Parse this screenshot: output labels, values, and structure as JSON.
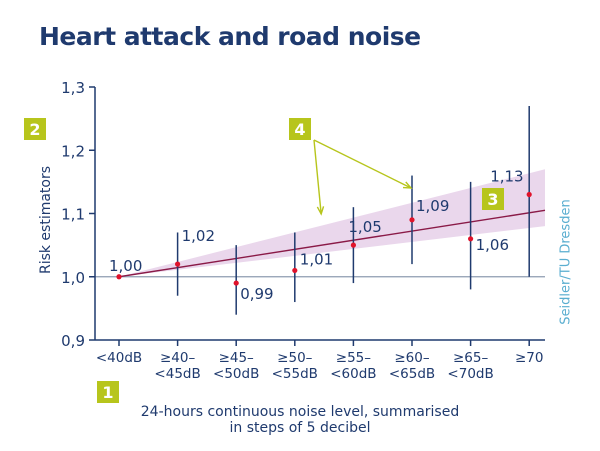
{
  "chart_data": {
    "type": "scatter",
    "title": "Heart attack and road noise",
    "xlabel_line1": "24-hours continuous noise level, summarised",
    "xlabel_line2": "in steps of 5 decibel",
    "ylabel": "Risk estimators",
    "credit": "Seidler/TU Dresden",
    "categories": [
      [
        "<40dB"
      ],
      [
        "≥40–",
        "<45dB"
      ],
      [
        "≥45–",
        "<50dB"
      ],
      [
        "≥50–",
        "<55dB"
      ],
      [
        "≥55–",
        "<60dB"
      ],
      [
        "≥60–",
        "<65dB"
      ],
      [
        "≥65–",
        "<70dB"
      ],
      [
        "≥70"
      ]
    ],
    "values": [
      1.0,
      1.02,
      0.99,
      1.01,
      1.05,
      1.09,
      1.06,
      1.13
    ],
    "value_labels": [
      "1,00",
      "1,02",
      "0,99",
      "1,01",
      "1,05",
      "1,09",
      "1,06",
      "1,13"
    ],
    "ci_low": [
      1.0,
      0.97,
      0.94,
      0.96,
      0.99,
      1.02,
      0.98,
      1.0
    ],
    "ci_high": [
      1.0,
      1.07,
      1.05,
      1.07,
      1.11,
      1.16,
      1.15,
      1.27
    ],
    "trend": {
      "start": 1.0,
      "end": 1.105
    },
    "band": {
      "start_low": 1.0,
      "start_high": 1.0,
      "end_low": 1.08,
      "end_high": 1.17
    },
    "reference_value": 1.0,
    "ylim": [
      0.9,
      1.3
    ],
    "yticks": [
      0.9,
      1.0,
      1.1,
      1.2,
      1.3
    ],
    "ytick_labels": [
      "0,9",
      "1,0",
      "1,1",
      "1,2",
      "1,3"
    ],
    "badges": [
      "1",
      "2",
      "3",
      "4"
    ],
    "colors": {
      "title": "#1f3a6e",
      "axis": "#1f3a6e",
      "point": "#e0132b",
      "trend": "#8a1a47",
      "band": "#ead7ec",
      "reference": "#8e9bb1",
      "badge": "#b7c51c",
      "credit": "#5aaed0"
    }
  }
}
